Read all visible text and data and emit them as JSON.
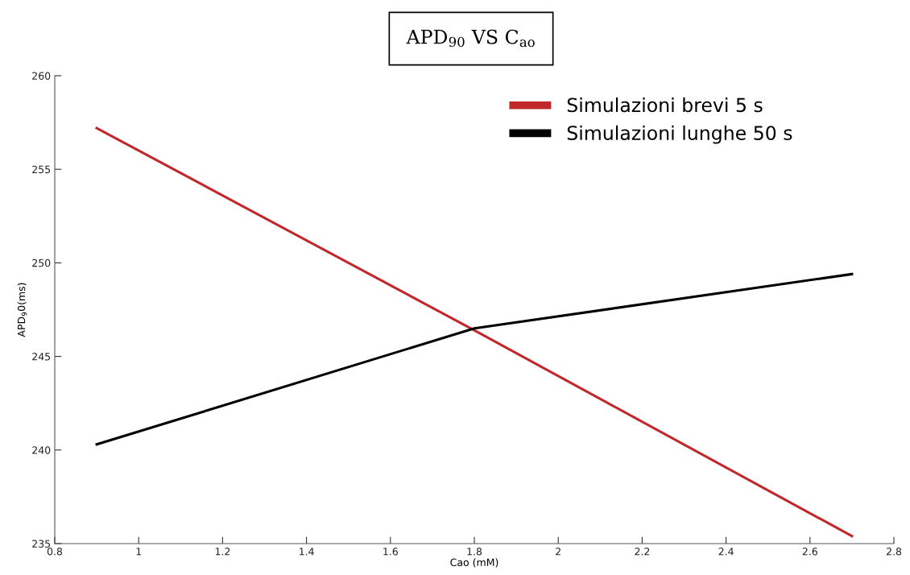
{
  "chart_data": {
    "type": "line",
    "title": "APD$_{90}$ VS C$_{ao}$",
    "xlabel": "Cao (mM)",
    "ylabel": "APD$_{9}$0(ms)",
    "x": [
      0.9,
      1.8,
      2.7
    ],
    "series": [
      {
        "name": "Simulazioni brevi 5 s",
        "color": "#c0282b",
        "values": [
          257.2,
          246.4,
          235.4
        ]
      },
      {
        "name": "Simulazioni lunghe 50 s",
        "color": "#000000",
        "values": [
          240.3,
          246.5,
          249.4
        ]
      }
    ],
    "xlim": [
      0.8,
      2.8
    ],
    "xticks": [
      0.8,
      1,
      1.2,
      1.4,
      1.6,
      1.8,
      2,
      2.2,
      2.4,
      2.6,
      2.8
    ],
    "ylim": [
      235,
      260
    ],
    "yticks": [
      235,
      240,
      245,
      250,
      255,
      260
    ],
    "grid": false,
    "legend": "top right",
    "marker": "none",
    "line_style": "solid"
  }
}
